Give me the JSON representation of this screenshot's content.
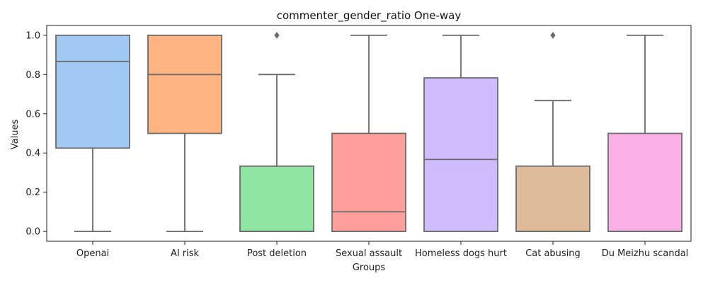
{
  "chart_data": {
    "type": "box",
    "title": "commenter_gender_ratio One-way",
    "xlabel": "Groups",
    "ylabel": "Values",
    "ylim": [
      -0.05,
      1.05
    ],
    "yticks": [
      0.0,
      0.2,
      0.4,
      0.6,
      0.8,
      1.0
    ],
    "ytick_labels": [
      "0.0",
      "0.2",
      "0.4",
      "0.6",
      "0.8",
      "1.0"
    ],
    "groups": [
      {
        "label": "Openai",
        "color": "#a1c9f4",
        "whisker_low": 0.0,
        "q1": 0.425,
        "median": 0.867,
        "q3": 1.0,
        "whisker_high": 1.0,
        "outliers": []
      },
      {
        "label": "AI risk",
        "color": "#ffb482",
        "whisker_low": 0.0,
        "q1": 0.5,
        "median": 0.8,
        "q3": 1.0,
        "whisker_high": 1.0,
        "outliers": []
      },
      {
        "label": "Post deletion",
        "color": "#8de5a1",
        "whisker_low": 0.0,
        "q1": 0.0,
        "median": 0.0,
        "q3": 0.333,
        "whisker_high": 0.8,
        "outliers": [
          1.0
        ]
      },
      {
        "label": "Sexual assault",
        "color": "#ff9f9b",
        "whisker_low": 0.0,
        "q1": 0.0,
        "median": 0.1,
        "q3": 0.5,
        "whisker_high": 1.0,
        "outliers": []
      },
      {
        "label": "Homeless dogs hurt",
        "color": "#d0bbff",
        "whisker_low": 0.0,
        "q1": 0.0,
        "median": 0.367,
        "q3": 0.783,
        "whisker_high": 1.0,
        "outliers": []
      },
      {
        "label": "Cat abusing",
        "color": "#debb9b",
        "whisker_low": 0.0,
        "q1": 0.0,
        "median": 0.0,
        "q3": 0.333,
        "whisker_high": 0.667,
        "outliers": [
          1.0
        ]
      },
      {
        "label": "Du Meizhu scandal",
        "color": "#fab0e4",
        "whisker_low": 0.0,
        "q1": 0.0,
        "median": 0.0,
        "q3": 0.5,
        "whisker_high": 1.0,
        "outliers": []
      }
    ],
    "line_color": "#6b6b6b"
  }
}
